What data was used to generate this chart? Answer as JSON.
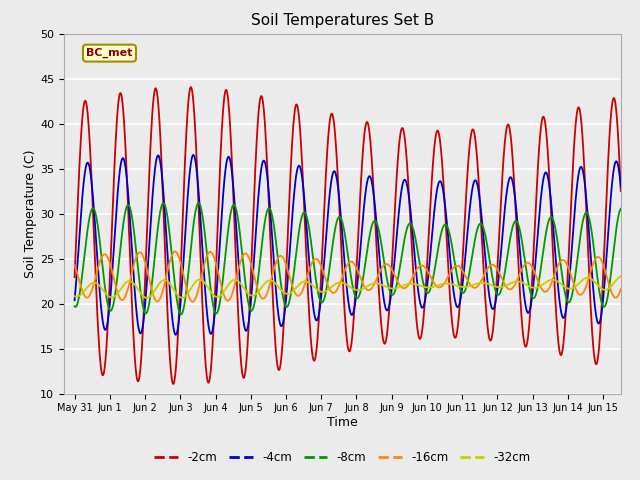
{
  "title": "Soil Temperatures Set B",
  "xlabel": "Time",
  "ylabel": "Soil Temperature (C)",
  "ylim": [
    10,
    50
  ],
  "xlim_days": [
    -0.3,
    15.5
  ],
  "annotation": "BC_met",
  "background_color": "#ebebeb",
  "grid_color": "white",
  "series": [
    {
      "label": "-2cm",
      "color": "#cc0000"
    },
    {
      "label": "-4cm",
      "color": "#0000cc"
    },
    {
      "label": "-8cm",
      "color": "#009900"
    },
    {
      "label": "-16cm",
      "color": "#ff8800"
    },
    {
      "label": "-32cm",
      "color": "#cccc00"
    }
  ],
  "xticks_positions": [
    0,
    1,
    2,
    3,
    4,
    5,
    6,
    7,
    8,
    9,
    10,
    11,
    12,
    13,
    14,
    15
  ],
  "xtick_labels": [
    "May 31",
    "Jun 1",
    "Jun 2",
    "Jun 3",
    "Jun 4",
    "Jun 5",
    "Jun 6",
    "Jun 7",
    "Jun 8",
    "Jun 9",
    "Jun 10",
    "Jun 11",
    "Jun 12",
    "Jun 13",
    "Jun 14",
    "Jun 15"
  ],
  "line_width": 1.3,
  "figsize": [
    6.4,
    4.8
  ],
  "dpi": 100
}
